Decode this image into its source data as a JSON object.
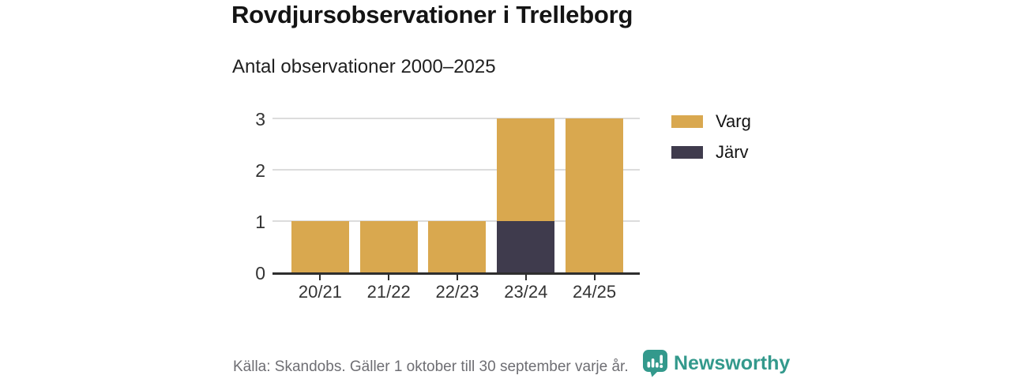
{
  "header": {
    "title": "Rovdjursobservationer i Trelleborg",
    "subtitle": "Antal observationer 2000–2025"
  },
  "chart_data": {
    "type": "bar",
    "stacked": true,
    "categories": [
      "20/21",
      "21/22",
      "22/23",
      "23/24",
      "24/25"
    ],
    "series": [
      {
        "name": "Varg",
        "color": "#d9a84f",
        "values": [
          1,
          1,
          1,
          2,
          3
        ]
      },
      {
        "name": "Järv",
        "color": "#3f3b4d",
        "values": [
          0,
          0,
          0,
          1,
          0
        ]
      }
    ],
    "stack_order_bottom_to_top": [
      "Järv",
      "Varg"
    ],
    "title": "Rovdjursobservationer i Trelleborg",
    "subtitle": "Antal observationer 2000–2025",
    "xlabel": "",
    "ylabel": "",
    "ylim": [
      0,
      3
    ],
    "yticks": [
      0,
      1,
      2,
      3
    ],
    "grid": true,
    "legend_position": "right"
  },
  "legend": {
    "items": [
      {
        "label": "Varg",
        "color": "#d9a84f"
      },
      {
        "label": "Järv",
        "color": "#3f3b4d"
      }
    ]
  },
  "footer": {
    "source": "Källa: Skandobs. Gäller 1 oktober till 30 september varje år.",
    "brand": "Newsworthy"
  },
  "colors": {
    "varg": "#d9a84f",
    "jarv": "#3f3b4d",
    "gridline": "#dcdcdc",
    "axis": "#2e2e2e",
    "tick_text": "#333333",
    "title_text": "#141414",
    "source_text": "#6e6e73",
    "brand_teal": "#33998c",
    "background": "#ffffff"
  }
}
